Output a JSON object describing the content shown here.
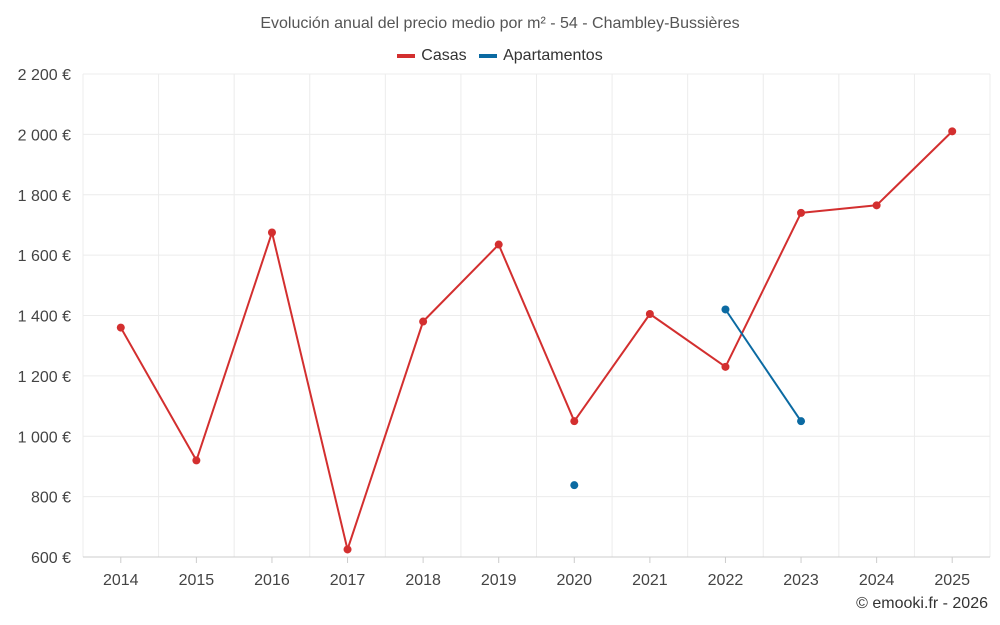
{
  "chart_data": {
    "type": "line",
    "title": "Evolución anual del precio medio por m² - 54 - Chambley-Bussières",
    "xlabel": "",
    "ylabel": "",
    "x": [
      "2014",
      "2015",
      "2016",
      "2017",
      "2018",
      "2019",
      "2020",
      "2021",
      "2022",
      "2023",
      "2024",
      "2025"
    ],
    "ylim": [
      600,
      2200
    ],
    "yticks": [
      600,
      800,
      1000,
      1200,
      1400,
      1600,
      1800,
      2000,
      2200
    ],
    "ytick_labels": [
      "600 €",
      "800 €",
      "1 000 €",
      "1 200 €",
      "1 400 €",
      "1 600 €",
      "1 800 €",
      "2 000 €",
      "2 200 €"
    ],
    "grid": true,
    "legend_position": "top-center",
    "series": [
      {
        "name": "Casas",
        "color": "#d32f2f",
        "values": [
          1360,
          920,
          1675,
          625,
          1380,
          1635,
          1050,
          1405,
          1230,
          1740,
          1765,
          2010
        ]
      },
      {
        "name": "Apartamentos",
        "color": "#0b6aa2",
        "values": [
          null,
          null,
          null,
          null,
          null,
          null,
          838,
          null,
          1420,
          1050,
          null,
          null
        ]
      }
    ]
  },
  "footer": {
    "copyright": "© emooki.fr - 2026"
  }
}
